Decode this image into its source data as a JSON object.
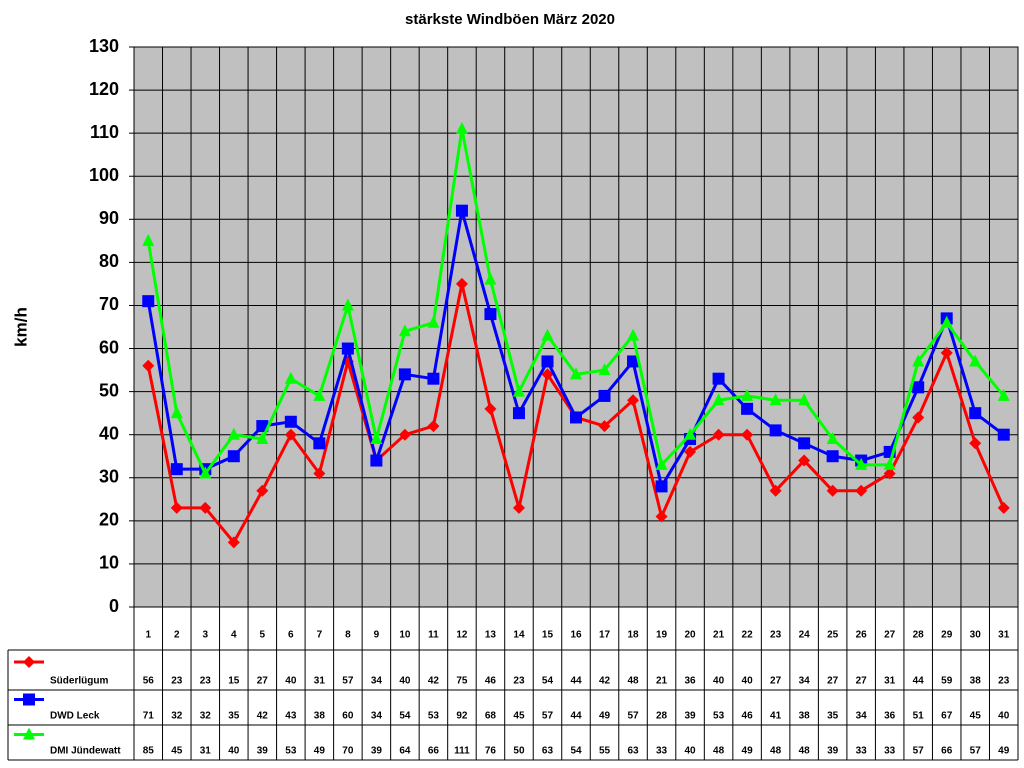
{
  "chart_data": {
    "type": "line",
    "title": "stärkste Windböen März 2020",
    "y_label": "km/h",
    "categories": [
      "1",
      "2",
      "3",
      "4",
      "5",
      "6",
      "7",
      "8",
      "9",
      "10",
      "11",
      "12",
      "13",
      "14",
      "15",
      "16",
      "17",
      "18",
      "19",
      "20",
      "21",
      "22",
      "23",
      "24",
      "25",
      "26",
      "27",
      "28",
      "29",
      "30",
      "31"
    ],
    "series": [
      {
        "name": "Süderlügum",
        "color": "#ff0000",
        "marker": "diamond",
        "values": [
          56,
          23,
          23,
          15,
          27,
          40,
          31,
          57,
          34,
          40,
          42,
          75,
          46,
          23,
          54,
          44,
          42,
          48,
          21,
          36,
          40,
          40,
          27,
          34,
          27,
          27,
          31,
          44,
          59,
          38,
          23
        ]
      },
      {
        "name": "DWD Leck",
        "color": "#0000ff",
        "marker": "square",
        "values": [
          71,
          32,
          32,
          35,
          42,
          43,
          38,
          60,
          34,
          54,
          53,
          92,
          68,
          45,
          57,
          44,
          49,
          57,
          28,
          39,
          53,
          46,
          41,
          38,
          35,
          34,
          36,
          51,
          67,
          45,
          40
        ]
      },
      {
        "name": "DMI Jündewatt",
        "color": "#00ff00",
        "marker": "triangle",
        "values": [
          85,
          45,
          31,
          40,
          39,
          53,
          49,
          70,
          39,
          64,
          66,
          111,
          76,
          50,
          63,
          54,
          55,
          63,
          33,
          40,
          48,
          49,
          48,
          48,
          39,
          33,
          33,
          57,
          66,
          57,
          49
        ]
      }
    ],
    "ylim": [
      0,
      130
    ],
    "yticks": [
      0,
      10,
      20,
      30,
      40,
      50,
      60,
      70,
      80,
      90,
      100,
      110,
      120,
      130
    ],
    "grid": true,
    "data_table": true
  }
}
